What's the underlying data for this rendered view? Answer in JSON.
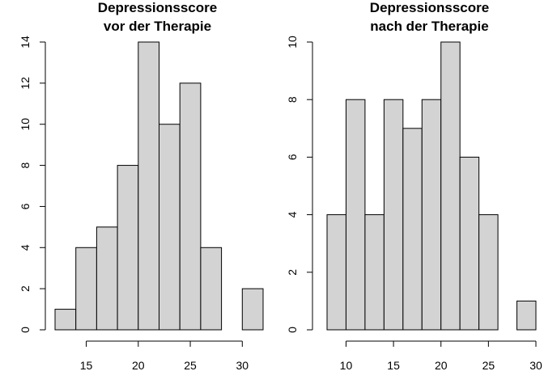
{
  "chart_data": [
    {
      "type": "bar",
      "title_lines": [
        "Depressionsscore",
        "vor der Therapie"
      ],
      "xlabel": "",
      "ylabel": "",
      "bin_edges": [
        12,
        14,
        16,
        18,
        20,
        22,
        24,
        26,
        28,
        30,
        32
      ],
      "values": [
        1,
        4,
        5,
        8,
        14,
        10,
        12,
        4,
        0,
        2
      ],
      "x_ticks": [
        15,
        20,
        25,
        30
      ],
      "y_ticks": [
        0,
        2,
        4,
        6,
        8,
        10,
        12,
        14
      ],
      "ylim": [
        0,
        14
      ],
      "bar_color": "#d3d3d3",
      "grid": false
    },
    {
      "type": "bar",
      "title_lines": [
        "Depressionsscore",
        "nach der Therapie"
      ],
      "xlabel": "",
      "ylabel": "",
      "bin_edges": [
        8,
        10,
        12,
        14,
        16,
        18,
        20,
        22,
        24,
        26,
        28,
        30
      ],
      "values": [
        4,
        8,
        4,
        8,
        7,
        8,
        10,
        6,
        4,
        0,
        1
      ],
      "x_ticks": [
        10,
        15,
        20,
        25,
        30
      ],
      "y_ticks": [
        0,
        2,
        4,
        6,
        8,
        10
      ],
      "ylim": [
        0,
        10
      ],
      "bar_color": "#d3d3d3",
      "grid": false
    }
  ]
}
